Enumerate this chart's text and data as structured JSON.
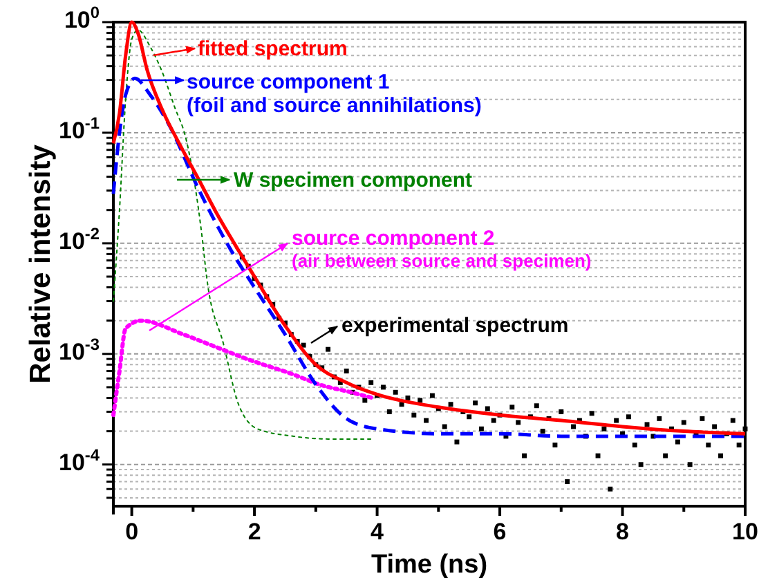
{
  "chart_data": {
    "type": "line",
    "xlabel": "Time (ns)",
    "ylabel": "Relative intensity",
    "log": "y",
    "grid": "y",
    "legend": "top",
    "xlim": [
      -0.3,
      10
    ],
    "xticks": [
      0,
      {
        "value": 1,
        "label": null
      },
      2,
      {
        "value": 3,
        "label": null
      },
      4,
      {
        "value": 5,
        "label": null
      },
      6,
      {
        "value": 7,
        "label": null
      },
      8,
      {
        "value": 9,
        "label": null
      },
      10
    ],
    "ylim": [
      4.2e-05,
      1
    ],
    "yticks": [
      {
        "value": 5e-05,
        "label": null
      },
      {
        "value": 6e-05,
        "label": null
      },
      {
        "value": 7e-05,
        "label": null
      },
      {
        "value": 8e-05,
        "label": null
      },
      {
        "value": 9e-05,
        "label": null
      },
      {
        "value": 0.0001,
        "label": "10$^{-4}$"
      },
      {
        "value": 0.0002,
        "label": null
      },
      {
        "value": 0.0003,
        "label": null
      },
      {
        "value": 0.0004,
        "label": null
      },
      {
        "value": 0.0005,
        "label": null
      },
      {
        "value": 0.0006,
        "label": null
      },
      {
        "value": 0.0007,
        "label": null
      },
      {
        "value": 0.0008,
        "label": null
      },
      {
        "value": 0.0009,
        "label": null
      },
      {
        "value": 0.001,
        "label": "10$^{-3}$"
      },
      {
        "value": 0.002,
        "label": null
      },
      {
        "value": 0.003,
        "label": null
      },
      {
        "value": 0.004,
        "label": null
      },
      {
        "value": 0.005,
        "label": null
      },
      {
        "value": 0.006,
        "label": null
      },
      {
        "value": 0.007,
        "label": null
      },
      {
        "value": 0.008,
        "label": null
      },
      {
        "value": 0.009,
        "label": null
      },
      {
        "value": 0.01,
        "label": "10$^{-2}$"
      },
      {
        "value": 0.02,
        "label": null
      },
      {
        "value": 0.03,
        "label": null
      },
      {
        "value": 0.04,
        "label": null
      },
      {
        "value": 0.05,
        "label": null
      },
      {
        "value": 0.06,
        "label": null
      },
      {
        "value": 0.07,
        "label": null
      },
      {
        "value": 0.08,
        "label": null
      },
      {
        "value": 0.09,
        "label": null
      },
      {
        "value": 0.1,
        "label": "10$^{-1}$"
      },
      {
        "value": 0.2,
        "label": null
      },
      {
        "value": 0.3,
        "label": null
      },
      {
        "value": 0.4,
        "label": null
      },
      {
        "value": 0.5,
        "label": null
      },
      {
        "value": 0.6,
        "label": null
      },
      {
        "value": 0.7,
        "label": null
      },
      {
        "value": 0.8,
        "label": null
      },
      {
        "value": 0.9,
        "label": null
      },
      {
        "value": 1,
        "label": "10$^{0}$"
      }
    ],
    "annotations": [
      "(foil and source annihilations)",
      "(air between source and specimen)"
    ],
    "series": [
      {
        "name": "experimental spectrum",
        "type": "scatter",
        "marker": "square",
        "color": "#000000",
        "x": [
          1.8,
          1.9,
          2.0,
          2.1,
          2.2,
          2.3,
          2.4,
          2.5,
          2.6,
          2.7,
          2.8,
          2.9,
          3.0,
          3.1,
          3.2,
          3.3,
          3.4,
          3.5,
          3.6,
          3.7,
          3.8,
          3.9,
          4.0,
          4.1,
          4.2,
          4.3,
          4.4,
          4.5,
          4.6,
          4.7,
          4.8,
          4.9,
          5.0,
          5.1,
          5.2,
          5.3,
          5.4,
          5.5,
          5.6,
          5.7,
          5.8,
          5.9,
          6.0,
          6.1,
          6.2,
          6.3,
          6.4,
          6.5,
          6.6,
          6.7,
          6.8,
          6.9,
          7.0,
          7.1,
          7.2,
          7.3,
          7.4,
          7.5,
          7.6,
          7.7,
          7.8,
          7.9,
          8.0,
          8.1,
          8.2,
          8.3,
          8.4,
          8.5,
          8.6,
          8.7,
          8.8,
          8.9,
          9.0,
          9.1,
          9.2,
          9.3,
          9.4,
          9.5,
          9.6,
          9.7,
          9.8,
          9.9,
          10.0
        ],
        "values": [
          0.0075,
          0.0062,
          0.0048,
          0.0042,
          0.0033,
          0.0028,
          0.0021,
          0.0019,
          0.0015,
          0.0013,
          0.0012,
          0.00095,
          0.0008,
          0.00075,
          0.0011,
          0.00062,
          0.00055,
          0.0007,
          0.00045,
          0.0005,
          0.00038,
          0.00055,
          0.00042,
          0.0005,
          0.0003,
          0.00045,
          0.00035,
          0.0004,
          0.00028,
          0.00038,
          0.00025,
          0.00042,
          0.00032,
          0.00022,
          0.00035,
          0.00016,
          0.0003,
          0.00027,
          0.00036,
          0.00021,
          0.00032,
          0.00025,
          0.00028,
          0.00018,
          0.00033,
          0.00024,
          0.00012,
          0.00027,
          0.00034,
          0.0002,
          0.00026,
          0.00015,
          0.0003,
          7e-05,
          0.00022,
          0.00025,
          0.00018,
          0.00029,
          0.00012,
          0.00021,
          6e-05,
          0.00025,
          0.00019,
          0.00027,
          0.00015,
          0.0001,
          0.00023,
          0.00018,
          0.00026,
          0.00012,
          0.00021,
          0.00016,
          0.00024,
          0.0001,
          0.00019,
          0.00026,
          0.00015,
          0.00022,
          0.00012,
          0.00019,
          0.00025,
          0.00015,
          0.00021
        ]
      },
      {
        "name": "W specimen component",
        "line_style": "dotted",
        "color": "#008000",
        "x": [
          -0.3,
          -0.2,
          -0.1,
          0,
          0.1,
          0.3,
          0.5,
          0.7,
          0.88,
          1.15,
          1.22,
          1.5,
          1.74,
          2.05,
          2.64,
          3.2,
          3.9
        ],
        "values": [
          0.003,
          0.02,
          0.2,
          0.7,
          0.85,
          0.6,
          0.35,
          0.17,
          0.09,
          0.011,
          0.005,
          0.0012,
          0.00035,
          0.00021,
          0.00018,
          0.00017,
          0.00017
        ]
      },
      {
        "name": "source component 2",
        "line_style": "dotted",
        "color": "#ff00ff",
        "x": [
          -0.3,
          -0.2,
          -0.1,
          0.15,
          0.84,
          1.38,
          1.9,
          2.64,
          3.1,
          3.5,
          3.93
        ],
        "values": [
          0.00028,
          0.0007,
          0.0017,
          0.002,
          0.0015,
          0.00115,
          0.00089,
          0.00065,
          0.00052,
          0.00046,
          0.0004
        ]
      },
      {
        "name": "source component 1",
        "line_style": "dashed",
        "color": "#0000ff",
        "x": [
          -0.3,
          -0.2,
          -0.1,
          0.05,
          0.3,
          0.6,
          1.1,
          1.6,
          2.0,
          2.5,
          3.0,
          3.5,
          4.0,
          5,
          6,
          7,
          8,
          9,
          10
        ],
        "values": [
          0.028,
          0.1,
          0.22,
          0.31,
          0.22,
          0.12,
          0.03,
          0.009,
          0.004,
          0.0015,
          0.00053,
          0.00026,
          0.00021,
          0.00019,
          0.00019,
          0.00018,
          0.00018,
          0.00018,
          0.00018
        ]
      },
      {
        "name": "fitted spectrum",
        "line_style": "solid",
        "color": "#ff0000",
        "x": [
          -0.3,
          -0.2,
          -0.1,
          0,
          0.1,
          0.25,
          0.5,
          0.8,
          1.1,
          1.4,
          1.67,
          2.0,
          2.5,
          3.0,
          3.5,
          4.0,
          5,
          6,
          7,
          8,
          9,
          10
        ],
        "values": [
          0.08,
          0.15,
          0.5,
          1.0,
          0.8,
          0.37,
          0.16,
          0.075,
          0.037,
          0.018,
          0.01,
          0.005,
          0.0018,
          0.0008,
          0.00055,
          0.00043,
          0.00033,
          0.00028,
          0.00025,
          0.00022,
          0.0002,
          0.00019
        ]
      }
    ]
  }
}
